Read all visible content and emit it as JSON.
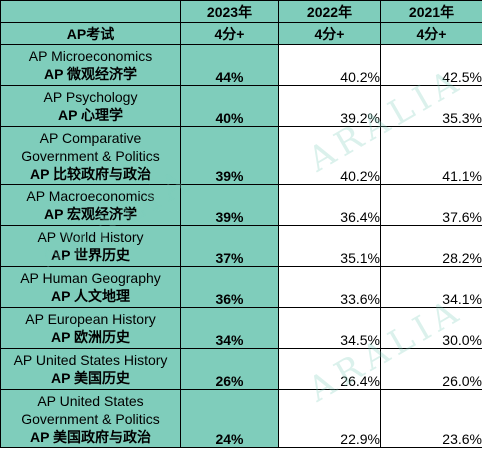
{
  "header": {
    "year_2023": "2023年",
    "year_2022": "2022年",
    "year_2021": "2021年",
    "exam_label": "AP考试",
    "score_2023": "4分+",
    "score_2022": "4分+",
    "score_2021": "4分+"
  },
  "rows": [
    {
      "en": "AP Microeconomics",
      "cn": "AP 微观经济学",
      "v2023": "44%",
      "v2022": "40.2%",
      "v2021": "42.5%"
    },
    {
      "en": "AP Psychology",
      "cn": "AP 心理学",
      "v2023": "40%",
      "v2022": "39.2%",
      "v2021": "35.3%"
    },
    {
      "en": "AP Comparative Government & Politics",
      "cn": "AP 比较政府与政治",
      "v2023": "39%",
      "v2022": "40.2%",
      "v2021": "41.1%"
    },
    {
      "en": "AP Macroeconomics",
      "cn": "AP 宏观经济学",
      "v2023": "39%",
      "v2022": "36.4%",
      "v2021": "37.6%"
    },
    {
      "en": "AP World History",
      "cn": "AP 世界历史",
      "v2023": "37%",
      "v2022": "35.1%",
      "v2021": "28.2%"
    },
    {
      "en": "AP Human Geography",
      "cn": "AP 人文地理",
      "v2023": "36%",
      "v2022": "33.6%",
      "v2021": "34.1%"
    },
    {
      "en": "AP European History",
      "cn": "AP 欧洲历史",
      "v2023": "34%",
      "v2022": "34.5%",
      "v2021": "30.0%"
    },
    {
      "en": "AP United States History",
      "cn": "AP 美国历史",
      "v2023": "26%",
      "v2022": "26.4%",
      "v2021": "26.0%"
    },
    {
      "en": "AP United States Government & Politics",
      "cn": "AP 美国政府与政治",
      "v2023": "24%",
      "v2022": "22.9%",
      "v2021": "23.6%"
    }
  ],
  "colors": {
    "accent": "#7fcdbb",
    "border": "#000000"
  }
}
